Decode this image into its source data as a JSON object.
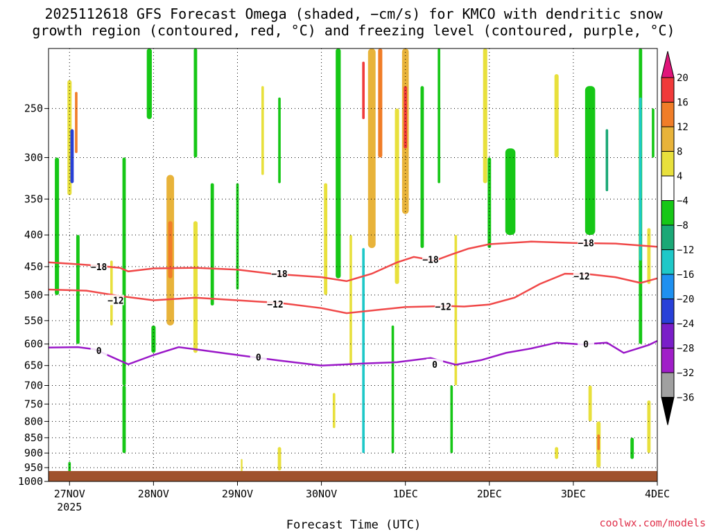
{
  "chart_data": {
    "type": "time-height-contour",
    "title_line1": "2025112618 GFS Forecast Omega (shaded, −cm/s) for KMCO with dendritic snow",
    "title_line2": "growth region (contoured, red, °C) and freezing level (contoured, purple, °C)",
    "xlabel": "Forecast Time (UTC)",
    "credit": "coolwx.com/models",
    "x_ticks": [
      "27NOV",
      "28NOV",
      "29NOV",
      "30NOV",
      "1DEC",
      "2DEC",
      "3DEC",
      "4DEC"
    ],
    "x_year_label": "2025",
    "x_range_days": [
      -0.25,
      7.0
    ],
    "y_ticks": [
      250,
      300,
      350,
      400,
      450,
      500,
      550,
      600,
      650,
      700,
      750,
      800,
      850,
      900,
      950,
      1000
    ],
    "y_range_hpa": [
      200,
      1000
    ],
    "y_scale": "log-pressure",
    "colorbar": {
      "labels": [
        "20",
        "16",
        "12",
        "8",
        "4",
        "−4",
        "−8",
        "−12",
        "−16",
        "−20",
        "−24",
        "−28",
        "−32",
        "−36"
      ],
      "levels": [
        20,
        16,
        12,
        8,
        4,
        -4,
        -8,
        -12,
        -16,
        -20,
        -24,
        -28,
        -32,
        -36
      ],
      "colors": {
        "above_20": "#e0157a",
        "16_20": "#f03a3a",
        "12_16": "#f07d28",
        "8_12": "#e8b33a",
        "4_8": "#e8e03c",
        "-4_4": "#ffffff",
        "-8_-4": "#16c716",
        "-12_-8": "#1aa876",
        "-16_-12": "#1ec8c8",
        "-20_-16": "#1e90f0",
        "-24_-20": "#2840d8",
        "-28_-24": "#7a1ec8",
        "-32_-28": "#a01ec8",
        "-36_-32": "#a0a0a0",
        "below_-36": "#000000"
      }
    },
    "contours": [
      {
        "name": "dgz_minus18",
        "label": "−18",
        "color": "#f04848",
        "points": [
          [
            -0.25,
            443
          ],
          [
            0,
            445
          ],
          [
            0.3,
            448
          ],
          [
            0.6,
            452
          ],
          [
            0.7,
            458
          ],
          [
            1,
            453
          ],
          [
            1.5,
            452
          ],
          [
            2,
            455
          ],
          [
            2.4,
            462
          ],
          [
            2.7,
            465
          ],
          [
            3,
            468
          ],
          [
            3.3,
            475
          ],
          [
            3.6,
            462
          ],
          [
            3.9,
            443
          ],
          [
            4.1,
            434
          ],
          [
            4.35,
            440
          ],
          [
            4.55,
            430
          ],
          [
            4.75,
            421
          ],
          [
            5,
            414
          ],
          [
            5.5,
            410
          ],
          [
            6,
            412
          ],
          [
            6.5,
            413
          ],
          [
            7,
            418
          ]
        ],
        "label_at": [
          [
            0.35,
            450
          ],
          [
            2.5,
            462
          ],
          [
            4.3,
            438
          ],
          [
            6.15,
            412
          ]
        ]
      },
      {
        "name": "dgz_minus12",
        "label": "−12",
        "color": "#f04848",
        "points": [
          [
            -0.25,
            490
          ],
          [
            0.2,
            492
          ],
          [
            0.6,
            502
          ],
          [
            1,
            510
          ],
          [
            1.5,
            505
          ],
          [
            2,
            510
          ],
          [
            2.5,
            515
          ],
          [
            3,
            525
          ],
          [
            3.3,
            535
          ],
          [
            3.7,
            528
          ],
          [
            4,
            523
          ],
          [
            4.5,
            521
          ],
          [
            4.7,
            522
          ],
          [
            5,
            518
          ],
          [
            5.3,
            505
          ],
          [
            5.6,
            480
          ],
          [
            5.9,
            462
          ],
          [
            6.2,
            463
          ],
          [
            6.5,
            468
          ],
          [
            6.8,
            478
          ],
          [
            7,
            470
          ]
        ],
        "label_at": [
          [
            0.55,
            510
          ],
          [
            2.45,
            517
          ],
          [
            4.45,
            522
          ],
          [
            6.1,
            466
          ]
        ]
      },
      {
        "name": "freezing_level",
        "label": "0",
        "color": "#9a18c8",
        "points": [
          [
            -0.25,
            608
          ],
          [
            0.1,
            607
          ],
          [
            0.3,
            612
          ],
          [
            0.7,
            647
          ],
          [
            1.0,
            625
          ],
          [
            1.3,
            607
          ],
          [
            1.5,
            612
          ],
          [
            2.0,
            625
          ],
          [
            2.5,
            638
          ],
          [
            3.0,
            650
          ],
          [
            3.5,
            645
          ],
          [
            3.9,
            642
          ],
          [
            4.3,
            632
          ],
          [
            4.6,
            648
          ],
          [
            4.9,
            637
          ],
          [
            5.2,
            620
          ],
          [
            5.5,
            610
          ],
          [
            5.8,
            597
          ],
          [
            6.1,
            601
          ],
          [
            6.4,
            597
          ],
          [
            6.6,
            620
          ],
          [
            6.9,
            602
          ],
          [
            7,
            593
          ]
        ],
        "label_at": [
          [
            0.35,
            615
          ],
          [
            2.25,
            630
          ],
          [
            4.35,
            647
          ],
          [
            6.15,
            600
          ]
        ]
      }
    ],
    "omega_regions": [
      {
        "t": 0.0,
        "p1": 225,
        "p2": 345,
        "w": 0.05,
        "v": 6
      },
      {
        "t": 0.03,
        "p1": 270,
        "p2": 330,
        "w": 0.04,
        "v": -20
      },
      {
        "t": 0.08,
        "p1": 235,
        "p2": 295,
        "w": 0.03,
        "v": 14
      },
      {
        "t": -0.15,
        "p1": 300,
        "p2": 500,
        "w": 0.05,
        "v": -6
      },
      {
        "t": 0.1,
        "p1": 400,
        "p2": 600,
        "w": 0.04,
        "v": -6
      },
      {
        "t": 0.5,
        "p1": 440,
        "p2": 560,
        "w": 0.03,
        "v": 6
      },
      {
        "t": 0.65,
        "p1": 300,
        "p2": 700,
        "w": 0.04,
        "v": -6
      },
      {
        "t": 0.65,
        "p1": 700,
        "p2": 900,
        "w": 0.04,
        "v": -6
      },
      {
        "t": 0.0,
        "p1": 930,
        "p2": 980,
        "w": 0.03,
        "v": -6
      },
      {
        "t": 1.2,
        "p1": 320,
        "p2": 560,
        "w": 0.09,
        "v": 8
      },
      {
        "t": 1.2,
        "p1": 380,
        "p2": 470,
        "w": 0.05,
        "v": 12
      },
      {
        "t": 1.5,
        "p1": 380,
        "p2": 620,
        "w": 0.05,
        "v": 5
      },
      {
        "t": 0.95,
        "p1": 200,
        "p2": 260,
        "w": 0.06,
        "v": -6
      },
      {
        "t": 1.0,
        "p1": 560,
        "p2": 620,
        "w": 0.05,
        "v": -6
      },
      {
        "t": 1.7,
        "p1": 330,
        "p2": 520,
        "w": 0.04,
        "v": -6
      },
      {
        "t": 2.0,
        "p1": 330,
        "p2": 490,
        "w": 0.03,
        "v": -6
      },
      {
        "t": 1.5,
        "p1": 200,
        "p2": 300,
        "w": 0.04,
        "v": -5
      },
      {
        "t": 2.3,
        "p1": 230,
        "p2": 320,
        "w": 0.03,
        "v": 5
      },
      {
        "t": 2.5,
        "p1": 240,
        "p2": 330,
        "w": 0.03,
        "v": -6
      },
      {
        "t": 3.2,
        "p1": 200,
        "p2": 470,
        "w": 0.06,
        "v": -7
      },
      {
        "t": 3.05,
        "p1": 330,
        "p2": 500,
        "w": 0.04,
        "v": 6
      },
      {
        "t": 3.6,
        "p1": 200,
        "p2": 420,
        "w": 0.09,
        "v": 8
      },
      {
        "t": 3.5,
        "p1": 210,
        "p2": 260,
        "w": 0.03,
        "v": 16
      },
      {
        "t": 3.7,
        "p1": 200,
        "p2": 300,
        "w": 0.05,
        "v": 12
      },
      {
        "t": 3.5,
        "p1": 420,
        "p2": 900,
        "w": 0.03,
        "v": -14
      },
      {
        "t": 3.35,
        "p1": 400,
        "p2": 650,
        "w": 0.03,
        "v": 6
      },
      {
        "t": 3.9,
        "p1": 250,
        "p2": 480,
        "w": 0.05,
        "v": 5
      },
      {
        "t": 4.0,
        "p1": 200,
        "p2": 370,
        "w": 0.08,
        "v": 8
      },
      {
        "t": 4.0,
        "p1": 230,
        "p2": 290,
        "w": 0.04,
        "v": 16
      },
      {
        "t": 3.85,
        "p1": 560,
        "p2": 900,
        "w": 0.03,
        "v": -6
      },
      {
        "t": 4.2,
        "p1": 230,
        "p2": 420,
        "w": 0.04,
        "v": -6
      },
      {
        "t": 4.4,
        "p1": 200,
        "p2": 330,
        "w": 0.03,
        "v": -6
      },
      {
        "t": 4.6,
        "p1": 400,
        "p2": 700,
        "w": 0.03,
        "v": 5
      },
      {
        "t": 4.55,
        "p1": 700,
        "p2": 900,
        "w": 0.03,
        "v": -6
      },
      {
        "t": 4.95,
        "p1": 200,
        "p2": 330,
        "w": 0.05,
        "v": 6
      },
      {
        "t": 5.0,
        "p1": 300,
        "p2": 420,
        "w": 0.04,
        "v": -6
      },
      {
        "t": 5.25,
        "p1": 290,
        "p2": 400,
        "w": 0.12,
        "v": -6
      },
      {
        "t": 5.8,
        "p1": 220,
        "p2": 300,
        "w": 0.05,
        "v": 5
      },
      {
        "t": 6.2,
        "p1": 230,
        "p2": 400,
        "w": 0.12,
        "v": -6
      },
      {
        "t": 6.4,
        "p1": 270,
        "p2": 340,
        "w": 0.03,
        "v": -10
      },
      {
        "t": 6.2,
        "p1": 700,
        "p2": 800,
        "w": 0.04,
        "v": 5
      },
      {
        "t": 6.3,
        "p1": 800,
        "p2": 950,
        "w": 0.05,
        "v": 6
      },
      {
        "t": 6.3,
        "p1": 840,
        "p2": 890,
        "w": 0.03,
        "v": 12
      },
      {
        "t": 6.7,
        "p1": 850,
        "p2": 920,
        "w": 0.04,
        "v": -6
      },
      {
        "t": 6.8,
        "p1": 200,
        "p2": 600,
        "w": 0.04,
        "v": -7
      },
      {
        "t": 6.8,
        "p1": 240,
        "p2": 440,
        "w": 0.03,
        "v": -14
      },
      {
        "t": 6.9,
        "p1": 390,
        "p2": 480,
        "w": 0.04,
        "v": 6
      },
      {
        "t": 6.9,
        "p1": 740,
        "p2": 900,
        "w": 0.04,
        "v": 6
      },
      {
        "t": 6.95,
        "p1": 250,
        "p2": 300,
        "w": 0.03,
        "v": -6
      },
      {
        "t": 5.8,
        "p1": 880,
        "p2": 920,
        "w": 0.04,
        "v": 6
      },
      {
        "t": 2.5,
        "p1": 880,
        "p2": 960,
        "w": 0.04,
        "v": 5
      },
      {
        "t": 2.05,
        "p1": 920,
        "p2": 980,
        "w": 0.02,
        "v": 5
      },
      {
        "t": 3.15,
        "p1": 720,
        "p2": 820,
        "w": 0.03,
        "v": 5
      }
    ]
  }
}
